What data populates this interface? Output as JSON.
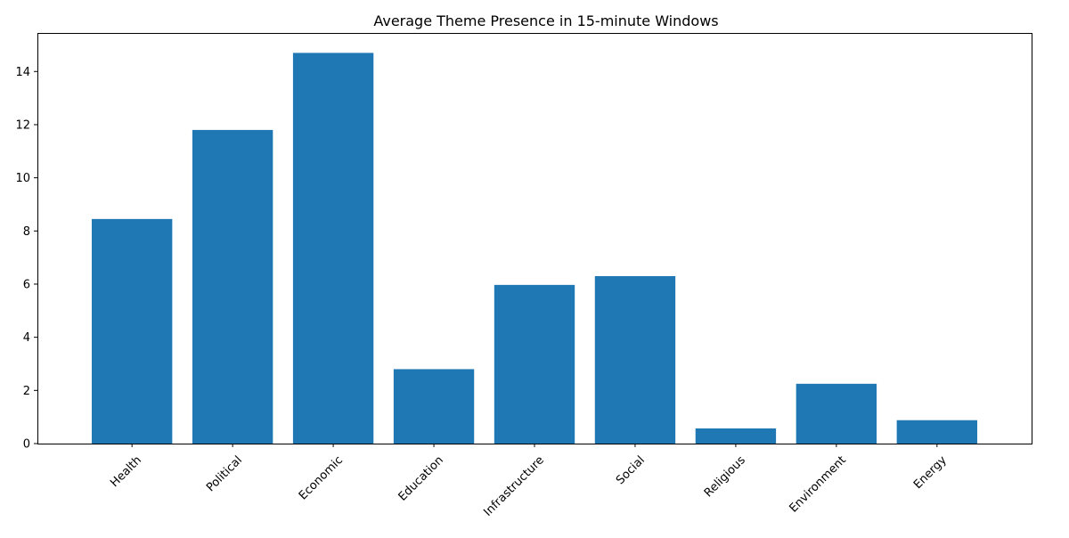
{
  "chart_data": {
    "type": "bar",
    "title": "Average Theme Presence in 15-minute Windows",
    "xlabel": "",
    "ylabel": "",
    "categories": [
      "Health",
      "Political",
      "Economic",
      "Education",
      "Infrastructure",
      "Social",
      "Religious",
      "Environment",
      "Energy"
    ],
    "values": [
      8.45,
      11.8,
      14.7,
      2.8,
      5.97,
      6.3,
      0.57,
      2.25,
      0.88
    ],
    "ylim": [
      0,
      15.45
    ],
    "yticks": [
      0,
      2,
      4,
      6,
      8,
      10,
      12,
      14
    ],
    "xtick_rotation_deg": 45,
    "bar_color": "#1f77b4",
    "grid": false,
    "legend": "none"
  }
}
